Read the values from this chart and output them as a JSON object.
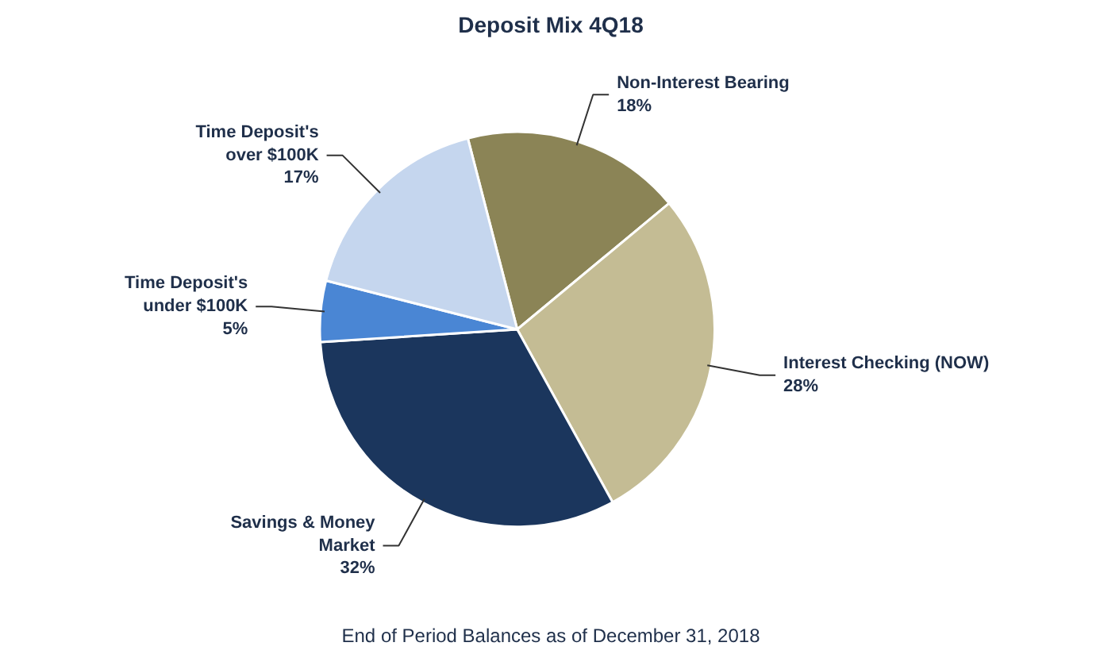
{
  "chart_data": {
    "type": "pie",
    "title": "Deposit Mix 4Q18",
    "categories": [
      "Non-Interest Bearing",
      "Interest Checking (NOW)",
      "Savings & Money\nMarket",
      "Time Deposit's\nunder $100K",
      "Time Deposit's\nover $100K"
    ],
    "values": [
      18,
      28,
      32,
      5,
      17
    ],
    "colors": [
      "#8b8456",
      "#c4bc94",
      "#1b365d",
      "#4a86d4",
      "#c5d6ee"
    ],
    "value_labels": [
      "18%",
      "28%",
      "32%",
      "5%",
      "17%"
    ],
    "annotations": [
      "End of Period Balances as of December 31, 2018"
    ]
  }
}
